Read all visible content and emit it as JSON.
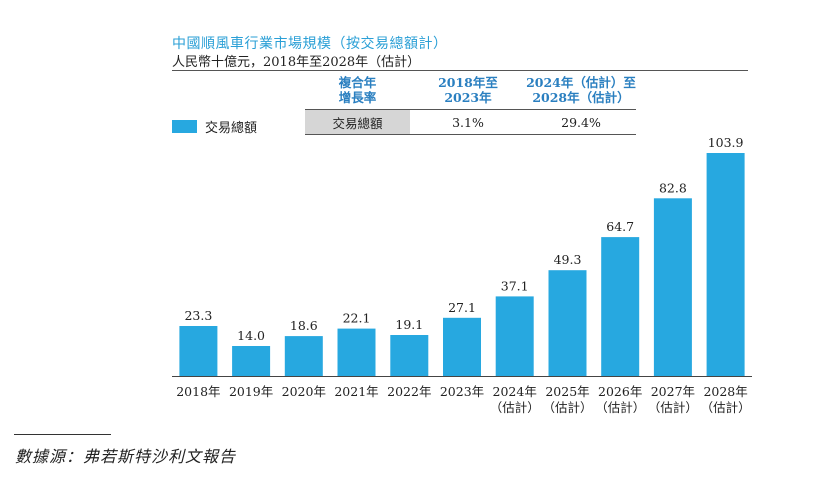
{
  "chart_data": {
    "type": "bar",
    "title": "中國順風車行業市場規模（按交易總額計）",
    "subtitle": "人民幣十億元，2018年至2028年（估計）",
    "categories": [
      "2018年",
      "2019年",
      "2020年",
      "2021年",
      "2022年",
      "2023年",
      "2024年\n（估計）",
      "2025年\n（估計）",
      "2026年\n（估計）",
      "2027年\n（估計）",
      "2028年\n（估計）"
    ],
    "series": [
      {
        "name": "交易總額",
        "values": [
          23.3,
          14.0,
          18.6,
          22.1,
          19.1,
          27.1,
          37.1,
          49.3,
          64.7,
          82.8,
          103.9
        ]
      }
    ],
    "value_labels": [
      "23.3",
      "14.0",
      "18.6",
      "22.1",
      "19.1",
      "27.1",
      "37.1",
      "49.3",
      "64.7",
      "82.8",
      "103.9"
    ],
    "ylim": [
      0,
      103.9
    ],
    "bar_color": "#27a8e0",
    "cagr_table": {
      "header": [
        "複合年\n增長率",
        "2018年至\n2023年",
        "2024年（估計）至\n2028年（估計）"
      ],
      "row": [
        "交易總額",
        "3.1%",
        "29.4%"
      ]
    },
    "legend": "交易總額"
  },
  "source": "數據源：弗若斯特沙利文報告"
}
